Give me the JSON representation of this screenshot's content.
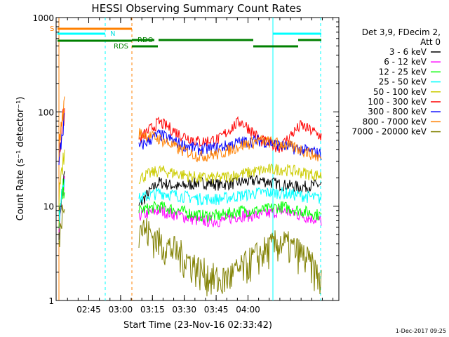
{
  "chart_data": {
    "type": "line",
    "title": "HESSI Observing Summary Count Rates",
    "xlabel": "Start Time (23-Nov-16 02:33:42)",
    "ylabel": "Count Rate (s⁻¹ detector⁻¹)",
    "yscale": "log",
    "ylim": [
      1,
      1000
    ],
    "x_ticks": [
      "02:45",
      "03:00",
      "03:15",
      "03:30",
      "03:45",
      "04:00"
    ],
    "y_ticks": [
      "1",
      "10",
      "100",
      "1000"
    ],
    "legend_header": [
      "Det 3,9, FDecim 2,",
      "Att 0"
    ],
    "legend_position": "right",
    "flag_labels": [
      "S",
      "N",
      "RDO",
      "RDS"
    ],
    "footer_date": "1-Dec-2017 09:25",
    "series": [
      {
        "name": "3 - 6 keV",
        "color": "#000000",
        "values": [
          10,
          18,
          16,
          18,
          17,
          18,
          19,
          17,
          16,
          17
        ]
      },
      {
        "name": "6 - 12 keV",
        "color": "#ff00ff",
        "values": [
          8,
          9,
          8,
          7,
          7,
          8,
          8,
          9,
          8,
          7
        ]
      },
      {
        "name": "12 - 25 keV",
        "color": "#00ff00",
        "values": [
          9,
          10,
          9,
          8,
          8,
          9,
          9,
          10,
          9,
          8
        ]
      },
      {
        "name": "25 - 50 keV",
        "color": "#00ffff",
        "values": [
          12,
          14,
          13,
          12,
          12,
          13,
          14,
          14,
          13,
          12
        ]
      },
      {
        "name": "50 - 100 keV",
        "color": "#cccc00",
        "values": [
          20,
          24,
          22,
          20,
          20,
          22,
          24,
          25,
          23,
          21
        ]
      },
      {
        "name": "100 - 300 keV",
        "color": "#ff0000",
        "values": [
          50,
          78,
          58,
          48,
          52,
          80,
          50,
          42,
          72,
          55
        ]
      },
      {
        "name": "300 - 800 keV",
        "color": "#0000ff",
        "values": [
          42,
          58,
          46,
          40,
          42,
          48,
          50,
          44,
          40,
          36
        ]
      },
      {
        "name": "800 - 7000 keV",
        "color": "#ff8000",
        "values": [
          60,
          52,
          40,
          34,
          36,
          44,
          50,
          46,
          40,
          32
        ]
      },
      {
        "name": "7000 - 20000 keV",
        "color": "#808000",
        "values": [
          6,
          4,
          3,
          2,
          1.5,
          2,
          3,
          4,
          3,
          1.5
        ]
      }
    ]
  }
}
